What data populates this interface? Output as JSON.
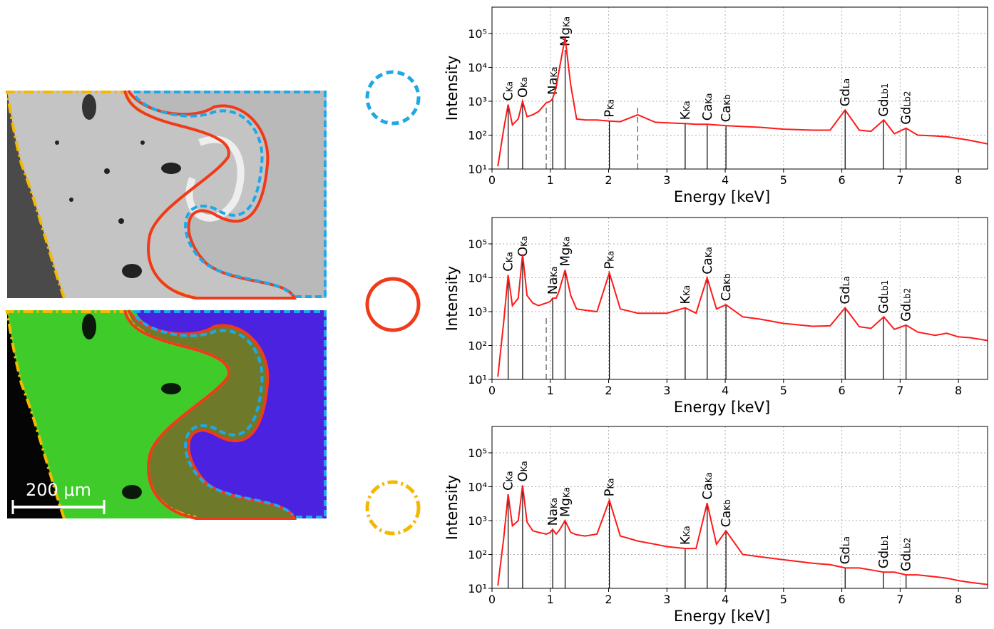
{
  "image_panel": {
    "scale_bar_label": "200 μm"
  },
  "chart_data": [
    {
      "type": "line",
      "x_label": "Energy [keV]",
      "y_label": "Intensity",
      "color": "#ff1a1a",
      "log_y": true,
      "grid": true,
      "x": [
        0.1,
        0.2,
        0.277,
        0.35,
        0.45,
        0.525,
        0.6,
        0.7,
        0.8,
        0.93,
        1.0,
        1.04,
        1.1,
        1.15,
        1.254,
        1.35,
        1.45,
        1.6,
        1.8,
        2.013,
        2.2,
        2.5,
        2.8,
        3.0,
        3.313,
        3.5,
        3.69,
        3.85,
        4.013,
        4.3,
        4.6,
        5.0,
        5.5,
        5.8,
        6.057,
        6.3,
        6.5,
        6.72,
        6.9,
        7.102,
        7.3,
        7.6,
        7.8,
        8.0,
        8.2,
        8.5
      ],
      "values": [
        12,
        150,
        800,
        200,
        300,
        1000,
        350,
        400,
        500,
        900,
        1000,
        1200,
        2500,
        8000,
        75000,
        3000,
        300,
        280,
        280,
        260,
        250,
        400,
        240,
        230,
        220,
        210,
        210,
        200,
        190,
        180,
        170,
        150,
        140,
        140,
        550,
        140,
        130,
        280,
        110,
        160,
        100,
        95,
        90,
        80,
        70,
        55
      ],
      "xlim": [
        0,
        8.5
      ],
      "xticks": [
        0,
        1,
        2,
        3,
        4,
        5,
        6,
        7,
        8
      ],
      "ylim": [
        10,
        600000
      ],
      "yticks": [
        {
          "value": 10,
          "label": "10¹"
        },
        {
          "value": 100,
          "label": "10²"
        },
        {
          "value": 1000,
          "label": "10³"
        },
        {
          "value": 10000,
          "label": "10⁴"
        },
        {
          "value": 100000,
          "label": "10⁵"
        }
      ],
      "dashed_lines": [
        0.93,
        2.5
      ],
      "peaks": [
        {
          "element": "C",
          "line": "Ka",
          "x": 0.277
        },
        {
          "element": "O",
          "line": "Ka",
          "x": 0.525
        },
        {
          "element": "Na",
          "line": "Ka",
          "x": 1.041
        },
        {
          "element": "Mg",
          "line": "Ka",
          "x": 1.254
        },
        {
          "element": "P",
          "line": "Ka",
          "x": 2.013
        },
        {
          "element": "K",
          "line": "Ka",
          "x": 3.313
        },
        {
          "element": "Ca",
          "line": "Ka",
          "x": 3.691
        },
        {
          "element": "Ca",
          "line": "Kb",
          "x": 4.013
        },
        {
          "element": "Gd",
          "line": "La",
          "x": 6.057
        },
        {
          "element": "Gd",
          "line": "Lb1",
          "x": 6.713
        },
        {
          "element": "Gd",
          "line": "Lb2",
          "x": 7.102
        }
      ]
    },
    {
      "type": "line",
      "x_label": "Energy [keV]",
      "y_label": "Intensity",
      "color": "#ff1a1a",
      "log_y": true,
      "grid": true,
      "x": [
        0.1,
        0.2,
        0.277,
        0.35,
        0.45,
        0.525,
        0.6,
        0.7,
        0.8,
        0.93,
        1.0,
        1.04,
        1.1,
        1.15,
        1.254,
        1.35,
        1.45,
        1.6,
        1.8,
        2.013,
        2.2,
        2.5,
        2.8,
        3.0,
        3.313,
        3.5,
        3.69,
        3.85,
        4.013,
        4.3,
        4.6,
        5.0,
        5.5,
        5.8,
        6.057,
        6.3,
        6.5,
        6.72,
        6.9,
        7.102,
        7.3,
        7.6,
        7.8,
        8.0,
        8.2,
        8.5
      ],
      "values": [
        12,
        500,
        12000,
        1500,
        2500,
        50000,
        3000,
        1800,
        1500,
        1800,
        2000,
        2500,
        2500,
        4000,
        17000,
        3000,
        1200,
        1100,
        1000,
        14000,
        1200,
        900,
        900,
        900,
        1300,
        900,
        10000,
        1200,
        1600,
        700,
        600,
        450,
        370,
        380,
        1300,
        360,
        320,
        700,
        300,
        400,
        250,
        200,
        230,
        180,
        170,
        140
      ],
      "xlim": [
        0,
        8.5
      ],
      "xticks": [
        0,
        1,
        2,
        3,
        4,
        5,
        6,
        7,
        8
      ],
      "ylim": [
        10,
        600000
      ],
      "yticks": [
        {
          "value": 10,
          "label": "10¹"
        },
        {
          "value": 100,
          "label": "10²"
        },
        {
          "value": 1000,
          "label": "10³"
        },
        {
          "value": 10000,
          "label": "10⁴"
        },
        {
          "value": 100000,
          "label": "10⁵"
        }
      ],
      "dashed_lines": [
        0.93
      ],
      "peaks": [
        {
          "element": "C",
          "line": "Ka",
          "x": 0.277
        },
        {
          "element": "O",
          "line": "Ka",
          "x": 0.525
        },
        {
          "element": "Na",
          "line": "Ka",
          "x": 1.041
        },
        {
          "element": "Mg",
          "line": "Ka",
          "x": 1.254
        },
        {
          "element": "P",
          "line": "Ka",
          "x": 2.013
        },
        {
          "element": "K",
          "line": "Ka",
          "x": 3.313
        },
        {
          "element": "Ca",
          "line": "Ka",
          "x": 3.691
        },
        {
          "element": "Ca",
          "line": "Kb",
          "x": 4.013
        },
        {
          "element": "Gd",
          "line": "La",
          "x": 6.057
        },
        {
          "element": "Gd",
          "line": "Lb1",
          "x": 6.713
        },
        {
          "element": "Gd",
          "line": "Lb2",
          "x": 7.102
        }
      ]
    },
    {
      "type": "line",
      "x_label": "Energy [keV]",
      "y_label": "Intensity",
      "color": "#ff1a1a",
      "log_y": true,
      "grid": true,
      "x": [
        0.1,
        0.2,
        0.277,
        0.35,
        0.45,
        0.525,
        0.6,
        0.7,
        0.8,
        0.93,
        1.0,
        1.04,
        1.1,
        1.15,
        1.254,
        1.35,
        1.45,
        1.6,
        1.8,
        2.013,
        2.2,
        2.5,
        2.8,
        3.0,
        3.313,
        3.5,
        3.69,
        3.85,
        4.013,
        4.3,
        4.6,
        5.0,
        5.5,
        5.8,
        6.057,
        6.3,
        6.5,
        6.72,
        6.9,
        7.102,
        7.3,
        7.6,
        7.8,
        8.0,
        8.2,
        8.5
      ],
      "values": [
        12,
        300,
        6000,
        700,
        1000,
        11000,
        900,
        500,
        450,
        400,
        450,
        550,
        400,
        500,
        1000,
        450,
        380,
        350,
        400,
        4000,
        350,
        250,
        200,
        170,
        150,
        150,
        3300,
        200,
        500,
        100,
        85,
        70,
        55,
        50,
        40,
        40,
        35,
        30,
        30,
        25,
        25,
        22,
        20,
        17,
        15,
        13
      ],
      "xlim": [
        0,
        8.5
      ],
      "xticks": [
        0,
        1,
        2,
        3,
        4,
        5,
        6,
        7,
        8
      ],
      "ylim": [
        10,
        600000
      ],
      "yticks": [
        {
          "value": 10,
          "label": "10¹"
        },
        {
          "value": 100,
          "label": "10²"
        },
        {
          "value": 1000,
          "label": "10³"
        },
        {
          "value": 10000,
          "label": "10⁴"
        },
        {
          "value": 100000,
          "label": "10⁵"
        }
      ],
      "dashed_lines": [],
      "peaks": [
        {
          "element": "C",
          "line": "Ka",
          "x": 0.277
        },
        {
          "element": "O",
          "line": "Ka",
          "x": 0.525
        },
        {
          "element": "Na",
          "line": "Ka",
          "x": 1.041
        },
        {
          "element": "Mg",
          "line": "Ka",
          "x": 1.254
        },
        {
          "element": "P",
          "line": "Ka",
          "x": 2.013
        },
        {
          "element": "K",
          "line": "Ka",
          "x": 3.313
        },
        {
          "element": "Ca",
          "line": "Ka",
          "x": 3.691
        },
        {
          "element": "Ca",
          "line": "Kb",
          "x": 4.013
        },
        {
          "element": "Gd",
          "line": "La",
          "x": 6.057
        },
        {
          "element": "Gd",
          "line": "Lb1",
          "x": 6.713
        },
        {
          "element": "Gd",
          "line": "Lb2",
          "x": 7.102
        }
      ]
    }
  ]
}
